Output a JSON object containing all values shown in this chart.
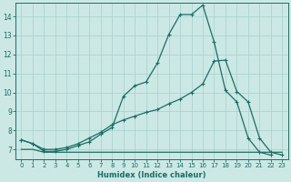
{
  "xlabel": "Humidex (Indice chaleur)",
  "xlim": [
    -0.5,
    23.5
  ],
  "ylim": [
    6.5,
    14.7
  ],
  "yticks": [
    7,
    8,
    9,
    10,
    11,
    12,
    13,
    14
  ],
  "xticks": [
    0,
    1,
    2,
    3,
    4,
    5,
    6,
    7,
    8,
    9,
    10,
    11,
    12,
    13,
    14,
    15,
    16,
    17,
    18,
    19,
    20,
    21,
    22,
    23
  ],
  "bg_color": "#cce8e5",
  "grid_color": "#aad4d0",
  "line_color": "#1a6e65",
  "lines": [
    {
      "x": [
        0,
        1,
        2,
        3,
        4,
        5,
        6,
        7,
        8,
        9,
        10,
        11,
        12,
        13,
        14,
        15,
        16,
        17,
        18,
        19,
        20,
        21,
        22,
        23
      ],
      "y": [
        7.5,
        7.3,
        6.9,
        6.9,
        7.0,
        7.2,
        7.4,
        7.8,
        8.15,
        9.8,
        10.35,
        10.55,
        11.55,
        13.05,
        14.1,
        14.1,
        14.6,
        12.65,
        10.1,
        9.5,
        7.6,
        6.85,
        6.7,
        null
      ],
      "has_markers": true
    },
    {
      "x": [
        0,
        1,
        2,
        3,
        4,
        5,
        6,
        7,
        8,
        9,
        10,
        11,
        12,
        13,
        14,
        15,
        16,
        17,
        18,
        19,
        20,
        21,
        22,
        23
      ],
      "y": [
        7.5,
        7.3,
        7.0,
        7.0,
        7.1,
        7.3,
        7.6,
        7.9,
        8.3,
        8.55,
        8.75,
        8.95,
        9.1,
        9.4,
        9.65,
        10.0,
        10.45,
        11.65,
        11.7,
        10.05,
        9.5,
        7.6,
        6.85,
        6.7
      ],
      "has_markers": true
    },
    {
      "x": [
        0,
        1,
        2,
        3,
        4,
        5,
        6,
        7,
        8,
        9,
        10,
        14,
        19,
        23
      ],
      "y": [
        7.0,
        7.0,
        6.85,
        6.85,
        6.85,
        6.85,
        6.85,
        6.85,
        6.85,
        6.85,
        6.85,
        6.85,
        6.85,
        6.85
      ],
      "has_markers": false
    }
  ]
}
